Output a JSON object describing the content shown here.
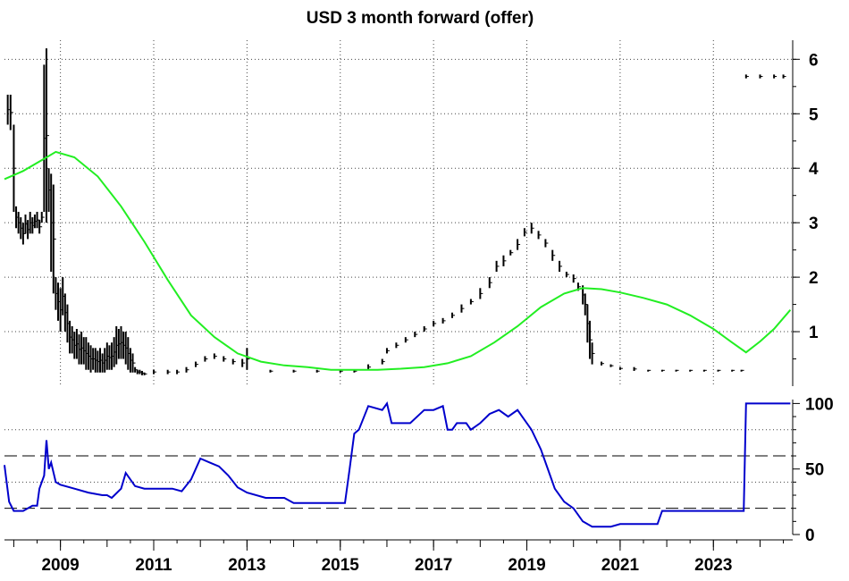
{
  "chart_data": [
    {
      "type": "bar",
      "panel": "upper",
      "title": "USD 3 month forward (offer)",
      "xlabel": "",
      "ylabel": "",
      "xlim": [
        2007.8,
        2024.7
      ],
      "ylim": [
        0.0,
        6.35
      ],
      "yticks": [
        1,
        2,
        3,
        4,
        5,
        6
      ],
      "y_axis_side": "right",
      "grid": true,
      "grid_style": "dotted",
      "series": [
        {
          "style": "hlc-bars",
          "color": "#000000",
          "x": [
            2007.87,
            2007.93,
            2008.0,
            2008.05,
            2008.1,
            2008.15,
            2008.2,
            2008.25,
            2008.3,
            2008.35,
            2008.4,
            2008.45,
            2008.5,
            2008.55,
            2008.6,
            2008.65,
            2008.7,
            2008.75,
            2008.8,
            2008.85,
            2008.9,
            2008.95,
            2009.0,
            2009.05,
            2009.1,
            2009.15,
            2009.2,
            2009.25,
            2009.3,
            2009.35,
            2009.4,
            2009.45,
            2009.5,
            2009.55,
            2009.6,
            2009.65,
            2009.7,
            2009.75,
            2009.8,
            2009.85,
            2009.9,
            2009.95,
            2010.0,
            2010.05,
            2010.1,
            2010.15,
            2010.2,
            2010.25,
            2010.3,
            2010.35,
            2010.4,
            2010.45,
            2010.5,
            2010.55,
            2010.6,
            2010.65,
            2010.7,
            2010.75,
            2010.8,
            2011.0,
            2011.3,
            2011.5,
            2011.7,
            2011.9,
            2012.1,
            2012.3,
            2012.5,
            2012.7,
            2012.9,
            2013.0,
            2013.5,
            2014.0,
            2014.5,
            2015.0,
            2015.3,
            2015.6,
            2015.9,
            2016.0,
            2016.2,
            2016.4,
            2016.6,
            2016.8,
            2017.0,
            2017.2,
            2017.4,
            2017.6,
            2017.8,
            2018.0,
            2018.2,
            2018.35,
            2018.5,
            2018.65,
            2018.8,
            2018.95,
            2019.1,
            2019.25,
            2019.4,
            2019.55,
            2019.7,
            2019.85,
            2020.0,
            2020.1,
            2020.2,
            2020.25,
            2020.3,
            2020.35,
            2020.4,
            2020.6,
            2020.8,
            2021.0,
            2021.3,
            2021.6,
            2021.9,
            2022.2,
            2022.5,
            2022.8,
            2023.1,
            2023.4,
            2023.6,
            2023.7,
            2024.0,
            2024.3,
            2024.5
          ],
          "high": [
            5.35,
            5.35,
            4.8,
            3.3,
            3.2,
            3.1,
            3.0,
            3.15,
            3.05,
            3.2,
            3.1,
            3.15,
            3.2,
            3.05,
            3.2,
            5.9,
            6.2,
            4.0,
            3.9,
            3.7,
            2.0,
            1.9,
            1.8,
            2.0,
            1.7,
            1.5,
            1.2,
            1.1,
            1.0,
            1.05,
            0.95,
            1.0,
            0.9,
            0.9,
            0.8,
            0.75,
            0.7,
            0.7,
            0.65,
            0.7,
            0.6,
            0.7,
            0.8,
            0.75,
            0.8,
            0.9,
            1.1,
            1.05,
            1.1,
            1.0,
            1.0,
            0.9,
            0.7,
            0.6,
            0.35,
            0.3,
            0.3,
            0.28,
            0.25,
            0.3,
            0.3,
            0.3,
            0.35,
            0.45,
            0.55,
            0.6,
            0.55,
            0.5,
            0.5,
            0.7,
            0.3,
            0.3,
            0.3,
            0.3,
            0.3,
            0.4,
            0.5,
            0.7,
            0.8,
            0.9,
            1.0,
            1.1,
            1.2,
            1.25,
            1.35,
            1.5,
            1.6,
            1.8,
            2.0,
            2.3,
            2.4,
            2.5,
            2.7,
            2.9,
            3.0,
            2.85,
            2.7,
            2.5,
            2.3,
            2.1,
            2.05,
            1.9,
            1.85,
            1.7,
            1.5,
            1.2,
            0.8,
            0.45,
            0.4,
            0.35,
            0.35,
            0.3,
            0.3,
            0.3,
            0.3,
            0.3,
            0.3,
            0.3,
            0.3,
            5.72,
            5.72,
            5.72,
            5.72
          ],
          "low": [
            4.8,
            4.7,
            3.2,
            2.9,
            2.8,
            2.7,
            2.6,
            2.8,
            2.7,
            2.8,
            2.8,
            2.9,
            2.9,
            2.8,
            3.0,
            3.2,
            3.0,
            3.2,
            2.1,
            1.7,
            1.4,
            1.2,
            1.0,
            1.3,
            1.0,
            0.8,
            0.6,
            0.6,
            0.5,
            0.5,
            0.4,
            0.4,
            0.4,
            0.3,
            0.3,
            0.25,
            0.3,
            0.25,
            0.25,
            0.25,
            0.25,
            0.25,
            0.3,
            0.3,
            0.3,
            0.35,
            0.4,
            0.5,
            0.5,
            0.5,
            0.4,
            0.3,
            0.25,
            0.25,
            0.25,
            0.22,
            0.22,
            0.2,
            0.2,
            0.22,
            0.22,
            0.22,
            0.25,
            0.35,
            0.45,
            0.5,
            0.45,
            0.4,
            0.35,
            0.3,
            0.25,
            0.25,
            0.25,
            0.25,
            0.25,
            0.3,
            0.4,
            0.6,
            0.7,
            0.8,
            0.9,
            1.0,
            1.1,
            1.15,
            1.25,
            1.35,
            1.5,
            1.6,
            1.8,
            2.1,
            2.2,
            2.4,
            2.5,
            2.75,
            2.8,
            2.7,
            2.55,
            2.3,
            2.1,
            2.0,
            1.9,
            1.75,
            1.5,
            1.3,
            0.8,
            0.5,
            0.4,
            0.38,
            0.35,
            0.3,
            0.28,
            0.28,
            0.28,
            0.28,
            0.28,
            0.28,
            0.28,
            0.28,
            0.28,
            5.65,
            5.65,
            5.65,
            5.65
          ]
        },
        {
          "style": "line",
          "color": "#22ee22",
          "x": [
            2007.8,
            2008.2,
            2008.6,
            2008.9,
            2009.3,
            2009.8,
            2010.3,
            2010.8,
            2011.3,
            2011.8,
            2012.3,
            2012.8,
            2013.3,
            2013.8,
            2014.3,
            2014.8,
            2015.3,
            2015.8,
            2016.3,
            2016.8,
            2017.3,
            2017.8,
            2018.3,
            2018.8,
            2019.3,
            2019.8,
            2020.2,
            2020.6,
            2021.0,
            2021.5,
            2022.0,
            2022.5,
            2023.0,
            2023.4,
            2023.7,
            2024.0,
            2024.3,
            2024.65
          ],
          "y": [
            3.8,
            3.95,
            4.15,
            4.3,
            4.2,
            3.85,
            3.3,
            2.65,
            1.95,
            1.3,
            0.9,
            0.6,
            0.45,
            0.38,
            0.35,
            0.3,
            0.3,
            0.3,
            0.32,
            0.35,
            0.42,
            0.55,
            0.8,
            1.1,
            1.45,
            1.7,
            1.8,
            1.78,
            1.72,
            1.62,
            1.5,
            1.3,
            1.05,
            0.8,
            0.62,
            0.82,
            1.05,
            1.4
          ]
        }
      ]
    },
    {
      "type": "line",
      "panel": "lower",
      "title": "",
      "xlabel": "",
      "ylabel": "",
      "xlim": [
        2007.8,
        2024.7
      ],
      "ylim": [
        0,
        103
      ],
      "yticks": [
        0,
        50,
        100
      ],
      "y_axis_side": "right",
      "reference_lines_dashed": [
        20,
        60
      ],
      "reference_lines_dotted": [
        40,
        80
      ],
      "x_tick_labels": [
        "2009",
        "2011",
        "2013",
        "2015",
        "2017",
        "2019",
        "2021",
        "2023"
      ],
      "x_tick_values": [
        2009,
        2011,
        2013,
        2015,
        2017,
        2019,
        2021,
        2023
      ],
      "x_minor_step": 0.5,
      "series": [
        {
          "color": "#0000cc",
          "x": [
            2007.8,
            2007.9,
            2008.0,
            2008.2,
            2008.4,
            2008.5,
            2008.55,
            2008.65,
            2008.7,
            2008.75,
            2008.8,
            2008.9,
            2009.0,
            2009.3,
            2009.6,
            2009.9,
            2010.0,
            2010.1,
            2010.3,
            2010.4,
            2010.6,
            2010.8,
            2011.0,
            2011.4,
            2011.6,
            2011.8,
            2011.9,
            2012.0,
            2012.2,
            2012.4,
            2012.6,
            2012.8,
            2013.0,
            2013.4,
            2013.8,
            2014.0,
            2014.4,
            2014.8,
            2015.1,
            2015.2,
            2015.3,
            2015.4,
            2015.6,
            2015.9,
            2016.0,
            2016.1,
            2016.5,
            2016.8,
            2017.0,
            2017.2,
            2017.3,
            2017.4,
            2017.5,
            2017.7,
            2017.8,
            2018.0,
            2018.2,
            2018.4,
            2018.6,
            2018.8,
            2018.9,
            2019.1,
            2019.3,
            2019.5,
            2019.6,
            2019.8,
            2020.0,
            2020.2,
            2020.4,
            2020.8,
            2021.0,
            2021.5,
            2021.8,
            2021.9,
            2022.2,
            2022.5,
            2023.0,
            2023.3,
            2023.6,
            2023.65,
            2023.7,
            2024.0,
            2024.65
          ],
          "y": [
            53,
            25,
            18,
            18,
            22,
            22,
            35,
            45,
            72,
            50,
            55,
            40,
            38,
            35,
            32,
            30,
            30,
            28,
            35,
            47,
            37,
            35,
            35,
            35,
            33,
            42,
            50,
            58,
            55,
            52,
            45,
            36,
            32,
            28,
            28,
            24,
            24,
            24,
            24,
            50,
            77,
            80,
            98,
            95,
            100,
            85,
            85,
            95,
            95,
            98,
            80,
            80,
            85,
            85,
            80,
            85,
            92,
            95,
            90,
            95,
            90,
            80,
            65,
            45,
            35,
            25,
            20,
            10,
            6,
            6,
            8,
            8,
            8,
            18,
            18,
            18,
            18,
            18,
            18,
            18,
            100,
            100,
            100
          ]
        }
      ]
    }
  ]
}
